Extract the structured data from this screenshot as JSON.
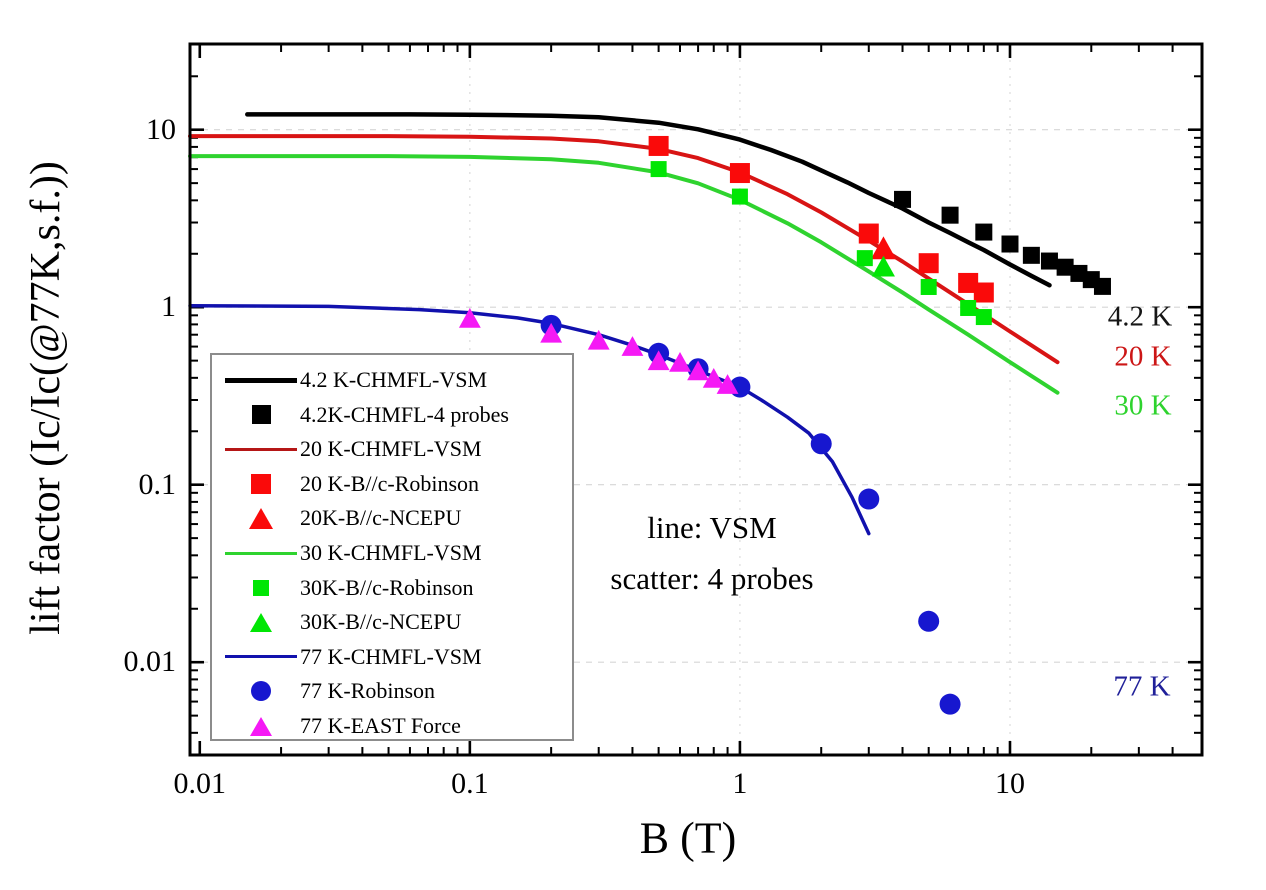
{
  "figure": {
    "background": "#ffffff",
    "annotation": {
      "line1": "line: VSM",
      "line2": "scatter: 4 probes"
    },
    "curve_labels": [
      {
        "text": "4.2 K",
        "color": "#161616"
      },
      {
        "text": "20 K",
        "color": "#cc1616"
      },
      {
        "text": "30 K",
        "color": "#2ed32e"
      },
      {
        "text": "77 K",
        "color": "#202099"
      }
    ]
  },
  "chart_data": {
    "type": "line+scatter",
    "x_scale": "log",
    "y_scale": "log",
    "xlabel": "B (T)",
    "ylabel": "lift factor (Ic/Ic(@77K,s.f.))",
    "xlim": [
      0.0092,
      51.4
    ],
    "ylim": [
      0.003,
      30.4
    ],
    "grid": "dashed decade gridlines",
    "legend_position": "lower-left inside plot",
    "x_ticks": [
      {
        "value": 0.01,
        "label": "0.01"
      },
      {
        "value": 0.1,
        "label": "0.1"
      },
      {
        "value": 1,
        "label": "1"
      },
      {
        "value": 10,
        "label": "10"
      }
    ],
    "y_ticks": [
      {
        "value": 10,
        "label": "10"
      },
      {
        "value": 1,
        "label": "1"
      },
      {
        "value": 0.1,
        "label": "0.1"
      },
      {
        "value": 0.01,
        "label": "0.01"
      }
    ],
    "x_gridlines": [
      0.1,
      1,
      10
    ],
    "y_gridlines": [
      0.01,
      0.1,
      1,
      10
    ],
    "series": [
      {
        "name": "4.2 K-CHMFL-VSM",
        "kind": "line",
        "color": "#000000",
        "width": 4.5,
        "points": [
          [
            0.015,
            12.2
          ],
          [
            0.03,
            12.2
          ],
          [
            0.06,
            12.2
          ],
          [
            0.1,
            12.15
          ],
          [
            0.2,
            12.0
          ],
          [
            0.3,
            11.75
          ],
          [
            0.5,
            10.95
          ],
          [
            0.7,
            10.05
          ],
          [
            1,
            8.8
          ],
          [
            1.3,
            7.7
          ],
          [
            1.7,
            6.6
          ],
          [
            2,
            5.9
          ],
          [
            2.5,
            5.05
          ],
          [
            3,
            4.4
          ],
          [
            4,
            3.6
          ],
          [
            5,
            3.0
          ],
          [
            6,
            2.62
          ],
          [
            7,
            2.32
          ],
          [
            8,
            2.1
          ],
          [
            10,
            1.74
          ],
          [
            12,
            1.5
          ],
          [
            14,
            1.33
          ]
        ]
      },
      {
        "name": "4.2K-CHMFL-4 probes",
        "kind": "scatter",
        "marker": "square",
        "color": "#000000",
        "size": 17,
        "points": [
          [
            4,
            4.05
          ],
          [
            6,
            3.3
          ],
          [
            8,
            2.65
          ],
          [
            10,
            2.27
          ],
          [
            12,
            1.96
          ],
          [
            14,
            1.82
          ],
          [
            16,
            1.68
          ],
          [
            18,
            1.55
          ],
          [
            20,
            1.43
          ],
          [
            22,
            1.31
          ]
        ]
      },
      {
        "name": "20 K-CHMFL-VSM",
        "kind": "line",
        "color": "#d81414",
        "width": 4,
        "points": [
          [
            0.0092,
            9.2
          ],
          [
            0.05,
            9.2
          ],
          [
            0.1,
            9.13
          ],
          [
            0.2,
            8.92
          ],
          [
            0.3,
            8.6
          ],
          [
            0.5,
            7.8
          ],
          [
            0.7,
            6.92
          ],
          [
            1,
            5.75
          ],
          [
            1.5,
            4.33
          ],
          [
            2,
            3.42
          ],
          [
            3,
            2.37
          ],
          [
            4,
            1.81
          ],
          [
            5,
            1.45
          ],
          [
            7,
            1.04
          ],
          [
            10,
            0.73
          ],
          [
            12,
            0.61
          ],
          [
            15,
            0.49
          ]
        ]
      },
      {
        "name": "20 K-B//c-Robinson",
        "kind": "scatter",
        "marker": "square",
        "color": "#fa0a0a",
        "size": 20,
        "points": [
          [
            0.5,
            8.1
          ],
          [
            1,
            5.7
          ],
          [
            3,
            2.6
          ],
          [
            5,
            1.77
          ],
          [
            7,
            1.37
          ],
          [
            8,
            1.21
          ]
        ]
      },
      {
        "name": "20K-B//c-NCEPU",
        "kind": "scatter",
        "marker": "triangle",
        "color": "#fa0a0a",
        "size": 22,
        "points": [
          [
            3.4,
            2.1
          ]
        ]
      },
      {
        "name": "30 K-CHMFL-VSM",
        "kind": "line",
        "color": "#2fd32f",
        "width": 4,
        "points": [
          [
            0.0092,
            7.1
          ],
          [
            0.05,
            7.1
          ],
          [
            0.1,
            7.03
          ],
          [
            0.2,
            6.82
          ],
          [
            0.3,
            6.51
          ],
          [
            0.5,
            5.75
          ],
          [
            0.7,
            4.99
          ],
          [
            1,
            4.03
          ],
          [
            1.5,
            2.97
          ],
          [
            2,
            2.32
          ],
          [
            3,
            1.59
          ],
          [
            4,
            1.21
          ],
          [
            5,
            0.97
          ],
          [
            7,
            0.7
          ],
          [
            10,
            0.49
          ],
          [
            12,
            0.41
          ],
          [
            15,
            0.33
          ]
        ]
      },
      {
        "name": "30K-B//c-Robinson",
        "kind": "scatter",
        "marker": "square",
        "color": "#00e604",
        "size": 16,
        "points": [
          [
            0.5,
            6.0
          ],
          [
            1,
            4.2
          ],
          [
            2.9,
            1.89
          ],
          [
            5,
            1.3
          ],
          [
            7,
            0.99
          ],
          [
            8,
            0.88
          ]
        ]
      },
      {
        "name": "30K-B//c-NCEPU",
        "kind": "scatter",
        "marker": "triangle",
        "color": "#00e604",
        "size": 20,
        "points": [
          [
            3.4,
            1.66
          ]
        ]
      },
      {
        "name": "77 K-CHMFL-VSM",
        "kind": "line",
        "color": "#1111ad",
        "width": 3.5,
        "points": [
          [
            0.0092,
            1.02
          ],
          [
            0.03,
            1.01
          ],
          [
            0.065,
            0.97
          ],
          [
            0.1,
            0.93
          ],
          [
            0.15,
            0.87
          ],
          [
            0.2,
            0.81
          ],
          [
            0.3,
            0.7
          ],
          [
            0.4,
            0.61
          ],
          [
            0.5,
            0.54
          ],
          [
            0.7,
            0.44
          ],
          [
            1,
            0.355
          ],
          [
            1.2,
            0.3
          ],
          [
            1.5,
            0.24
          ],
          [
            1.8,
            0.195
          ],
          [
            2.2,
            0.135
          ],
          [
            2.6,
            0.085
          ],
          [
            3,
            0.053
          ]
        ]
      },
      {
        "name": "77 K-Robinson",
        "kind": "scatter",
        "marker": "circle",
        "color": "#1717cf",
        "size": 21,
        "points": [
          [
            0.2,
            0.79
          ],
          [
            0.5,
            0.55
          ],
          [
            0.7,
            0.45
          ],
          [
            1,
            0.355
          ],
          [
            2,
            0.17
          ],
          [
            3,
            0.083
          ],
          [
            5,
            0.017
          ],
          [
            6,
            0.0058
          ]
        ]
      },
      {
        "name": "77 K-EAST Force",
        "kind": "scatter",
        "marker": "triangle",
        "color": "#f519f5",
        "size": 19,
        "points": [
          [
            0.1,
            0.85
          ],
          [
            0.2,
            0.7
          ],
          [
            0.3,
            0.64
          ],
          [
            0.4,
            0.59
          ],
          [
            0.5,
            0.49
          ],
          [
            0.6,
            0.48
          ],
          [
            0.7,
            0.43
          ],
          [
            0.8,
            0.39
          ],
          [
            0.9,
            0.36
          ]
        ]
      }
    ]
  },
  "legend": {
    "items": [
      {
        "label": "4.2 K-CHMFL-VSM",
        "swatch": "line",
        "color": "#000000",
        "lw": 5,
        "size": 0
      },
      {
        "label": "4.2K-CHMFL-4 probes",
        "swatch": "square",
        "color": "#000000",
        "lw": 0,
        "size": 19
      },
      {
        "label": "20 K-CHMFL-VSM",
        "swatch": "line",
        "color": "#b51616",
        "lw": 3,
        "size": 0
      },
      {
        "label": "20 K-B//c-Robinson",
        "swatch": "square",
        "color": "#fa0a0a",
        "lw": 0,
        "size": 20
      },
      {
        "label": "20K-B//c-NCEPU",
        "swatch": "triangle",
        "color": "#fa0a0a",
        "lw": 0,
        "size": 21
      },
      {
        "label": "30 K-CHMFL-VSM",
        "swatch": "line",
        "color": "#2fd32f",
        "lw": 3,
        "size": 0
      },
      {
        "label": "30K-B//c-Robinson",
        "swatch": "square",
        "color": "#00e604",
        "lw": 0,
        "size": 16
      },
      {
        "label": "30K-B//c-NCEPU",
        "swatch": "triangle",
        "color": "#00e604",
        "lw": 0,
        "size": 19
      },
      {
        "label": "77 K-CHMFL-VSM",
        "swatch": "line",
        "color": "#1111ad",
        "lw": 3,
        "size": 0
      },
      {
        "label": "77 K-Robinson",
        "swatch": "circle",
        "color": "#1717cf",
        "lw": 0,
        "size": 20
      },
      {
        "label": "77 K-EAST Force",
        "swatch": "triangle",
        "color": "#f519f5",
        "lw": 0,
        "size": 19
      }
    ]
  }
}
